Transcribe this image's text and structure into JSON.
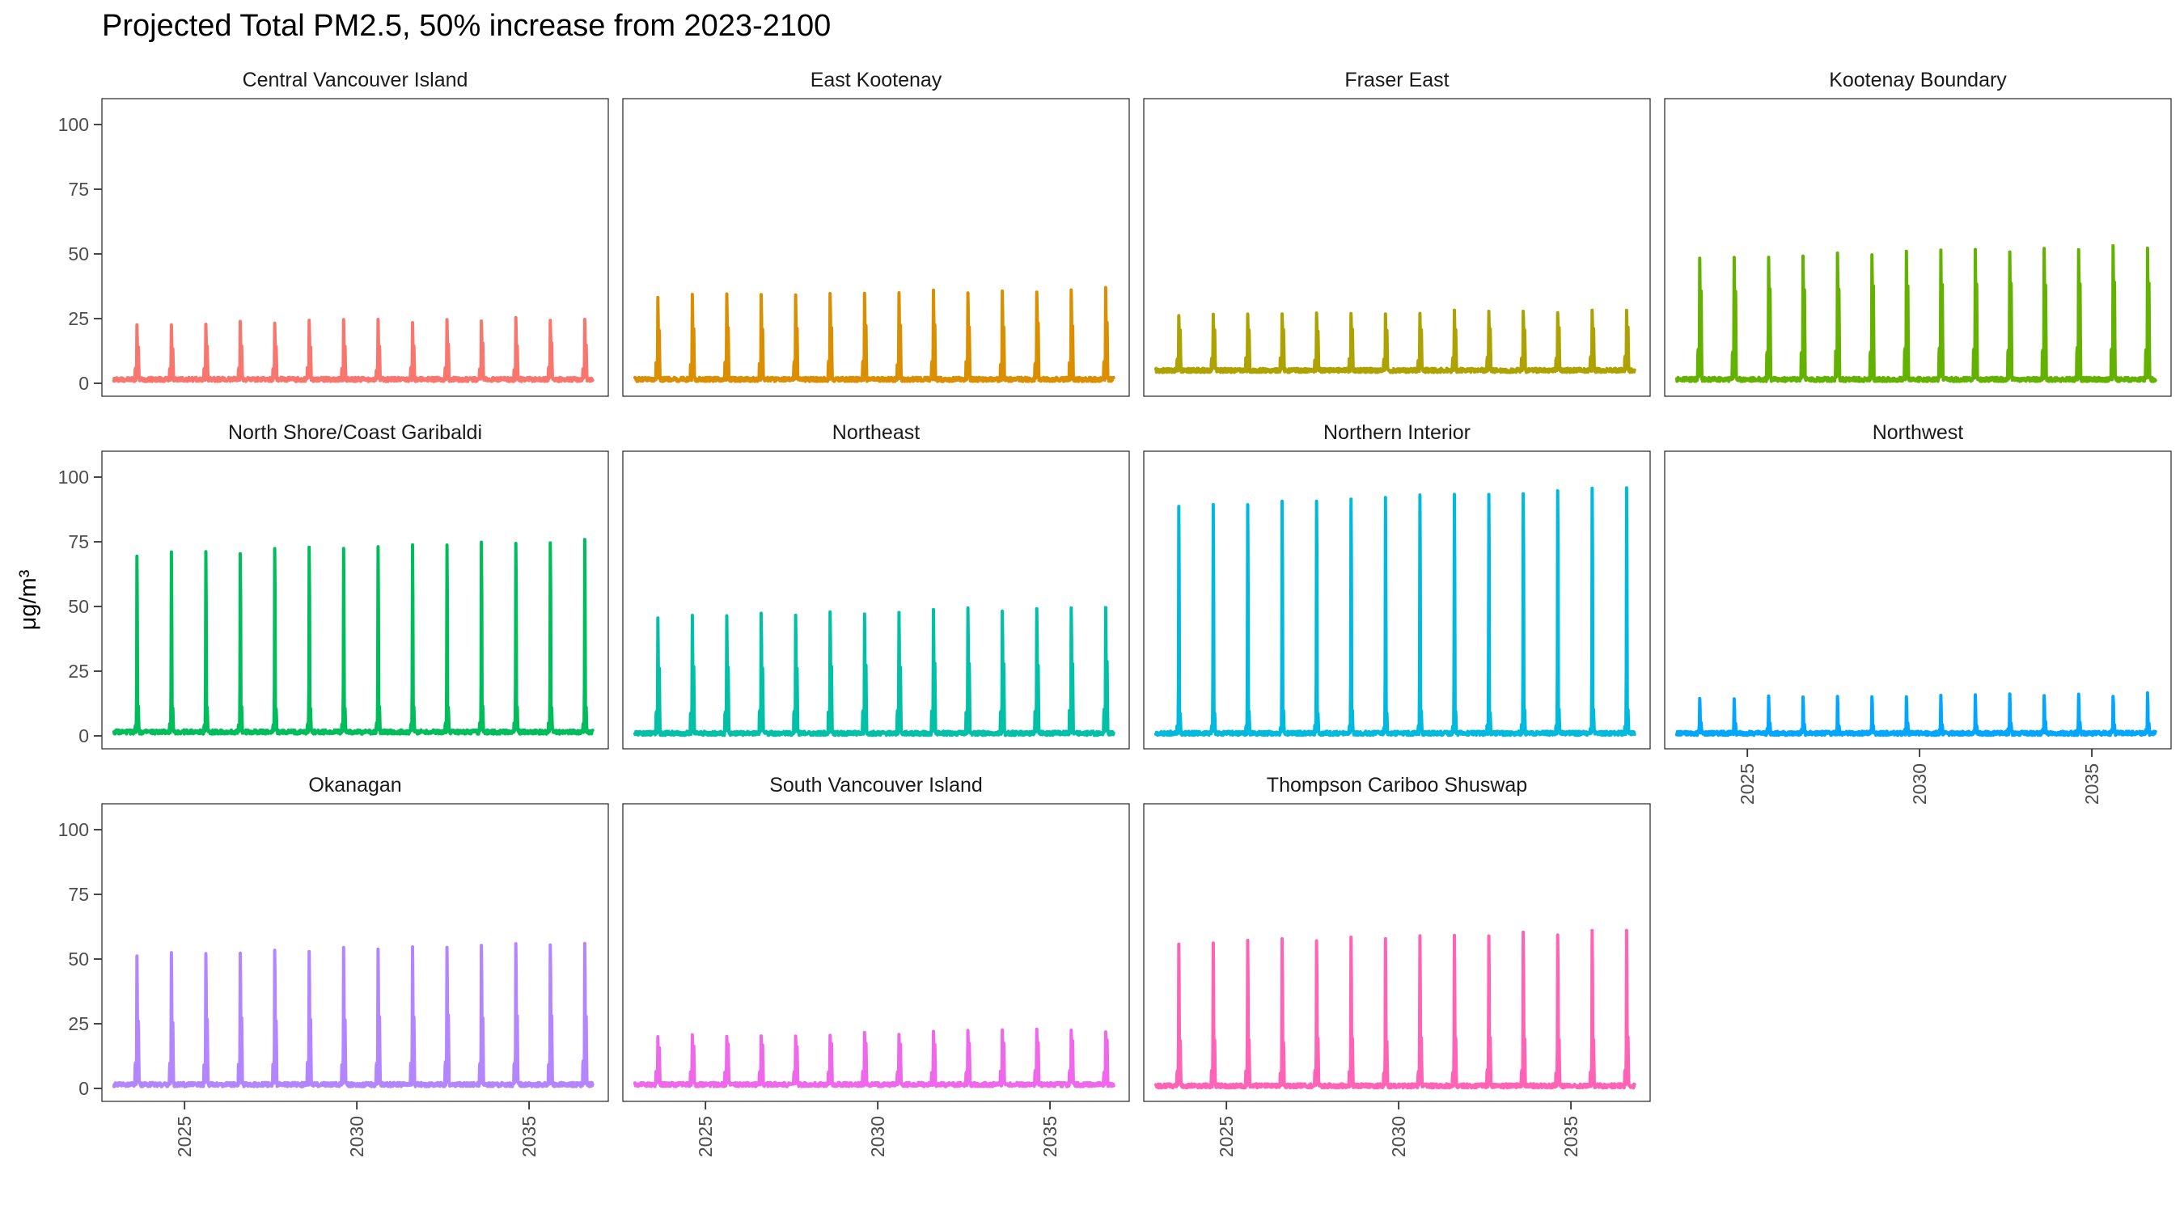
{
  "chart_data": {
    "type": "line",
    "title": "Projected Total PM2.5, 50% increase from 2023-2100",
    "xlabel": "",
    "ylabel": "μg/m³",
    "xlim": [
      2022.6,
      2037.3
    ],
    "ylim": [
      -5,
      110
    ],
    "x_ticks": [
      2025,
      2030,
      2035
    ],
    "y_ticks": [
      0,
      25,
      50,
      75,
      100
    ],
    "grid": false,
    "legend": "none",
    "years": [
      2023,
      2024,
      2025,
      2026,
      2027,
      2028,
      2029,
      2030,
      2031,
      2032,
      2033,
      2034,
      2035,
      2036
    ],
    "series": [
      {
        "name": "Central Vancouver Island",
        "color": "#F8766D",
        "baseline": 1.5,
        "peak_values": [
          25,
          25.2,
          25.4,
          25.6,
          25.8,
          26,
          26.1,
          26.2,
          26.3,
          26.4,
          26.6,
          26.8,
          27,
          27.2
        ],
        "secondary_ratio": 0.6
      },
      {
        "name": "East Kootenay",
        "color": "#DB8E00",
        "baseline": 1.5,
        "peak_values": [
          36.5,
          36.8,
          37,
          37.2,
          37.4,
          37.6,
          37.8,
          38,
          38.3,
          38.6,
          38.9,
          39.1,
          39.3,
          39.5
        ],
        "secondary_ratio": 0.62
      },
      {
        "name": "Fraser East",
        "color": "#AEA200",
        "baseline": 5,
        "peak_values": [
          28.5,
          28.6,
          28.8,
          29,
          29.1,
          29.2,
          29.4,
          29.5,
          29.6,
          29.7,
          29.8,
          29.9,
          30,
          30.2
        ],
        "secondary_ratio": 0.75
      },
      {
        "name": "Kootenay Boundary",
        "color": "#64B200",
        "baseline": 1.5,
        "peak_values": [
          53,
          53.3,
          53.6,
          54,
          54.3,
          54.6,
          55,
          55.3,
          55.6,
          56,
          56.3,
          56.6,
          57,
          57.3
        ],
        "secondary_ratio": 0.73
      },
      {
        "name": "North Shore/Coast Garibaldi",
        "color": "#00BD5C",
        "baseline": 1.5,
        "peak_values": [
          76,
          76.5,
          77,
          77.5,
          78,
          78.5,
          79,
          79.4,
          79.8,
          80.3,
          80.8,
          81.2,
          81.6,
          82
        ],
        "secondary_ratio": 0.15
      },
      {
        "name": "Northeast",
        "color": "#00C1A7",
        "baseline": 1,
        "peak_values": [
          50,
          50.3,
          50.6,
          51,
          51.3,
          51.6,
          52,
          52.3,
          52.6,
          53,
          53.2,
          53.5,
          53.8,
          54
        ],
        "secondary_ratio": 0.56
      },
      {
        "name": "Northern Interior",
        "color": "#00BADE",
        "baseline": 1,
        "peak_values": [
          97,
          97.5,
          98,
          98.5,
          99,
          99.5,
          100,
          100.6,
          101.2,
          101.8,
          102.4,
          103,
          103.8,
          105
        ],
        "secondary_ratio": 0.1
      },
      {
        "name": "Northwest",
        "color": "#00A6FF",
        "baseline": 1,
        "peak_values": [
          16,
          16.1,
          16.2,
          16.3,
          16.4,
          16.5,
          16.6,
          16.7,
          16.8,
          16.9,
          17,
          17.1,
          17.3,
          17.5
        ],
        "secondary_ratio": 0.3
      },
      {
        "name": "Okanagan",
        "color": "#B385FF",
        "baseline": 1.5,
        "peak_values": [
          56,
          56.4,
          56.8,
          57.2,
          57.6,
          58,
          58.4,
          58.8,
          59.2,
          59.6,
          60,
          60.3,
          60.6,
          61
        ],
        "secondary_ratio": 0.5
      },
      {
        "name": "South Vancouver Island",
        "color": "#EF67EB",
        "baseline": 1.5,
        "peak_values": [
          22,
          22.2,
          22.4,
          22.6,
          22.8,
          23,
          23.2,
          23.4,
          23.6,
          23.8,
          24,
          24.1,
          24.2,
          24.3
        ],
        "secondary_ratio": 0.8
      },
      {
        "name": "Thompson Cariboo Shuswap",
        "color": "#FF63B6",
        "baseline": 1,
        "peak_values": [
          61,
          61.4,
          61.8,
          62.2,
          62.6,
          63,
          63.4,
          63.8,
          64.2,
          64.6,
          65,
          65.4,
          65.8,
          66
        ],
        "secondary_ratio": 0.32
      }
    ]
  }
}
